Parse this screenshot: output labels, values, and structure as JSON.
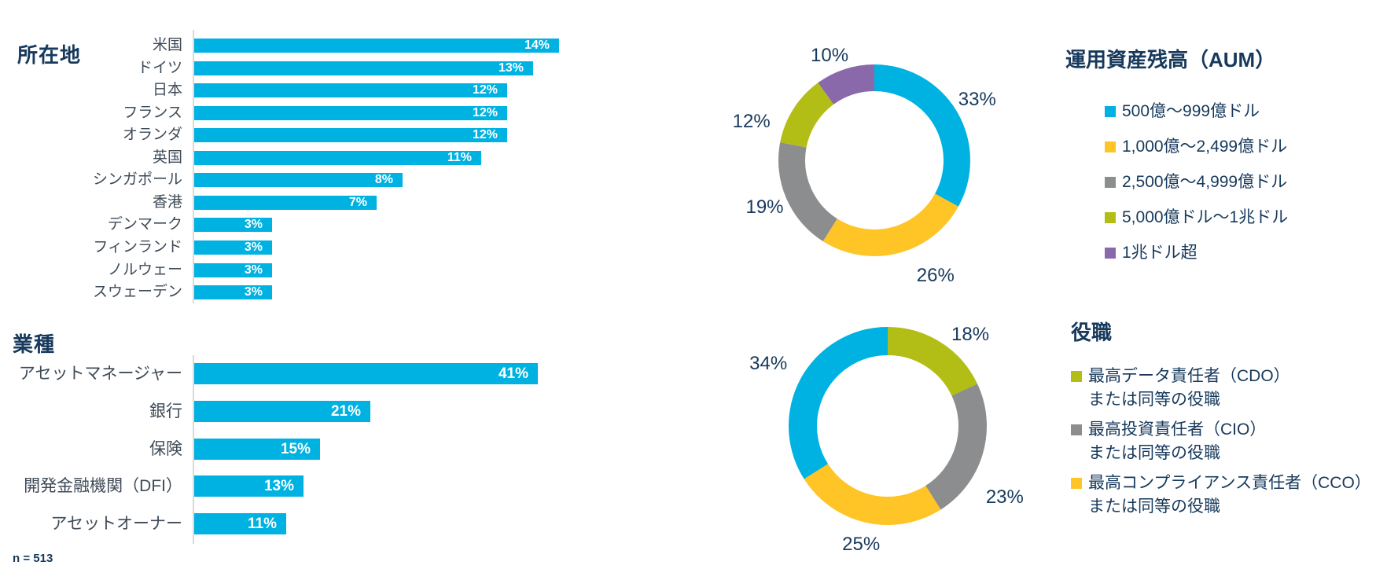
{
  "chart_data": [
    {
      "id": "location",
      "type": "bar",
      "title": "所在地",
      "orientation": "horizontal",
      "unit": "%",
      "grid": false,
      "value_labels": "inside-end",
      "bar_color": "#00B2E2",
      "xlim": [
        0,
        14
      ],
      "categories": [
        "米国",
        "ドイツ",
        "日本",
        "フランス",
        "オランダ",
        "英国",
        "シンガポール",
        "香港",
        "デンマーク",
        "フィンランド",
        "ノルウェー",
        "スウェーデン"
      ],
      "values": [
        14,
        13,
        12,
        12,
        12,
        11,
        8,
        7,
        3,
        3,
        3,
        3
      ]
    },
    {
      "id": "industry",
      "type": "bar",
      "title": "業種",
      "orientation": "horizontal",
      "unit": "%",
      "grid": false,
      "value_labels": "inside-end",
      "bar_color": "#00B2E2",
      "xlim": [
        0,
        41
      ],
      "categories": [
        "アセットマネージャー",
        "銀行",
        "保険",
        "開発金融機関（DFI）",
        "アセットオーナー"
      ],
      "values": [
        41,
        21,
        15,
        13,
        11
      ]
    },
    {
      "id": "aum",
      "type": "donut",
      "legend_title": "運用資産残高（AUM）",
      "legend_position": "right",
      "start_angle_deg": 0,
      "direction": "clockwise",
      "unit": "%",
      "segments": [
        {
          "label": "500億〜999億ドル",
          "value": 33,
          "color": "#00B2E2",
          "in_legend": true
        },
        {
          "label": "1,000億〜2,499億ドル",
          "value": 26,
          "color": "#FFC425",
          "in_legend": true
        },
        {
          "label": "2,500億〜4,999億ドル",
          "value": 19,
          "color": "#8B8D8F",
          "in_legend": true
        },
        {
          "label": "5,000億ドル〜1兆ドル",
          "value": 12,
          "color": "#B2BE16",
          "in_legend": true
        },
        {
          "label": "1兆ドル超",
          "value": 10,
          "color": "#8A69AB",
          "in_legend": true
        }
      ]
    },
    {
      "id": "role",
      "type": "donut",
      "legend_title": "役職",
      "legend_position": "right",
      "start_angle_deg": 0,
      "direction": "clockwise",
      "unit": "%",
      "segments": [
        {
          "label": "最高データ責任者（CDO）または同等の役職",
          "legend_lines": [
            "最高データ責任者（CDO）",
            "または同等の役職"
          ],
          "value": 18,
          "color": "#B2BE16",
          "in_legend": true
        },
        {
          "label": "最高投資責任者（CIO）または同等の役職",
          "legend_lines": [
            "最高投資責任者（CIO）",
            "または同等の役職"
          ],
          "value": 23,
          "color": "#8B8D8F",
          "in_legend": true
        },
        {
          "label": "最高コンプライアンス責任者（CCO）または同等の役職",
          "legend_lines": [
            "最高コンプライアンス責任者（CCO）",
            "または同等の役職"
          ],
          "value": 25,
          "color": "#FFC425",
          "in_legend": true
        },
        {
          "label": "",
          "value": 34,
          "color": "#00B2E2",
          "in_legend": false
        }
      ]
    }
  ],
  "footnote": "n = 513",
  "colors": {
    "navy_text": "#17395C",
    "bar_label_text": "#3E4A57",
    "cyan": "#00B2E2",
    "yellow": "#FFC425",
    "gray": "#8B8D8F",
    "green": "#B2BE16",
    "purple": "#8A69AB",
    "axis_line": "#D9D9D9",
    "value_label_text": "#FFFFFF"
  }
}
